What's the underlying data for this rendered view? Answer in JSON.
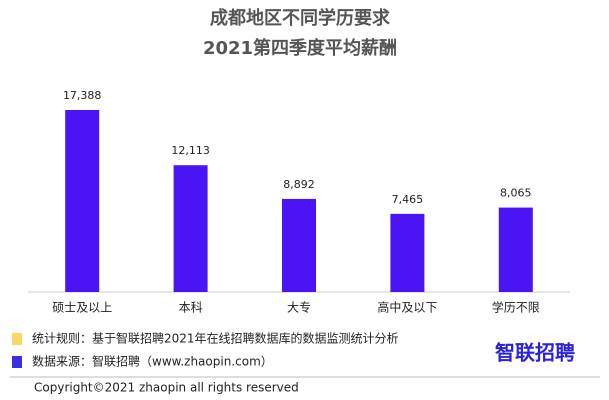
{
  "chart_data": {
    "type": "bar",
    "title": "成都地区不同学历要求",
    "subtitle": "2021第四季度平均薪酬",
    "categories": [
      "硕士及以上",
      "本科",
      "大专",
      "高中及以下",
      "学历不限"
    ],
    "values": [
      17388,
      12113,
      8892,
      7465,
      8065
    ],
    "value_labels": [
      "17,388",
      "12,113",
      "8,892",
      "7,465",
      "8,065"
    ],
    "color": "#4a14f5"
  },
  "notes": [
    {
      "text": "统计规则：基于智联招聘2021年在线招聘数据库的数据监测统计分析",
      "color": "#fdd765"
    },
    {
      "text": "数据来源：智联招聘（www.zhaopin.com）",
      "color": "#3a2ee6"
    }
  ],
  "logo": "智联招聘",
  "copyright": "Copyright©2021 zhaopin all rights reserved"
}
